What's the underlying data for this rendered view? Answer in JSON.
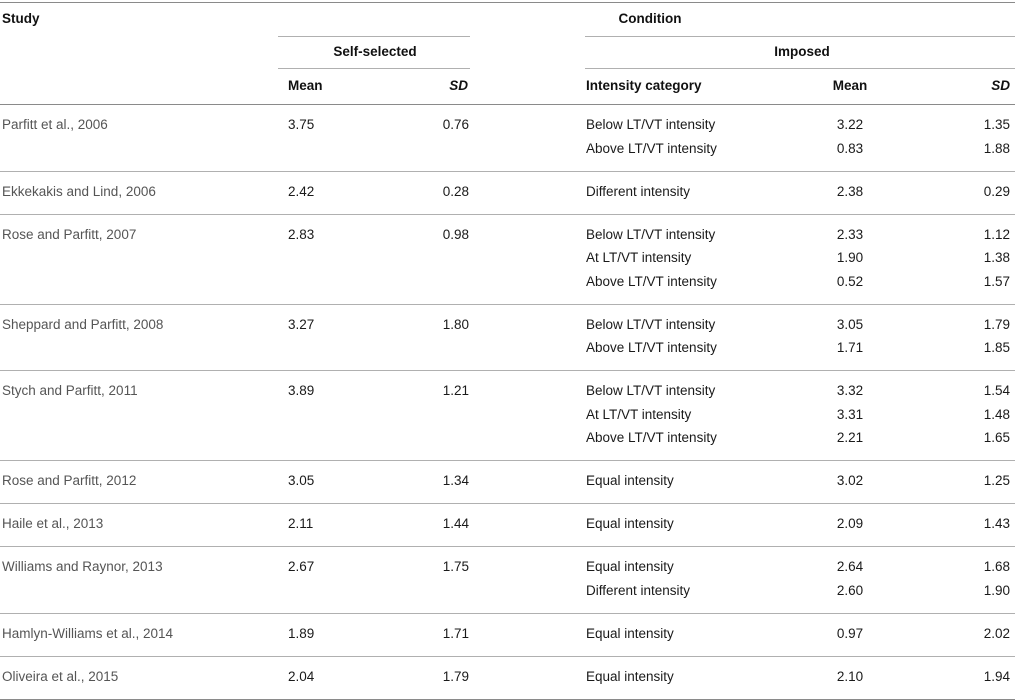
{
  "header": {
    "study": "Study",
    "condition": "Condition",
    "self_selected": "Self-selected",
    "imposed": "Imposed",
    "mean": "Mean",
    "sd": "SD",
    "intensity_category": "Intensity category"
  },
  "rows": [
    {
      "study": "Parfitt et al., 2006",
      "ss_mean": "3.75",
      "ss_sd": "0.76",
      "imposed": [
        {
          "category": "Below LT/VT intensity",
          "mean": "3.22",
          "sd": "1.35"
        },
        {
          "category": "Above LT/VT intensity",
          "mean": "0.83",
          "sd": "1.88"
        }
      ]
    },
    {
      "study": "Ekkekakis and Lind, 2006",
      "ss_mean": "2.42",
      "ss_sd": "0.28",
      "imposed": [
        {
          "category": "Different intensity",
          "mean": "2.38",
          "sd": "0.29"
        }
      ]
    },
    {
      "study": "Rose and Parfitt, 2007",
      "ss_mean": "2.83",
      "ss_sd": "0.98",
      "imposed": [
        {
          "category": "Below LT/VT intensity",
          "mean": "2.33",
          "sd": "1.12"
        },
        {
          "category": "At LT/VT intensity",
          "mean": "1.90",
          "sd": "1.38"
        },
        {
          "category": "Above LT/VT intensity",
          "mean": "0.52",
          "sd": "1.57"
        }
      ]
    },
    {
      "study": "Sheppard and Parfitt, 2008",
      "ss_mean": "3.27",
      "ss_sd": "1.80",
      "imposed": [
        {
          "category": "Below LT/VT intensity",
          "mean": "3.05",
          "sd": "1.79"
        },
        {
          "category": "Above LT/VT intensity",
          "mean": "1.71",
          "sd": "1.85"
        }
      ]
    },
    {
      "study": "Stych and Parfitt, 2011",
      "ss_mean": "3.89",
      "ss_sd": "1.21",
      "imposed": [
        {
          "category": "Below LT/VT intensity",
          "mean": "3.32",
          "sd": "1.54"
        },
        {
          "category": "At LT/VT intensity",
          "mean": "3.31",
          "sd": "1.48"
        },
        {
          "category": "Above LT/VT intensity",
          "mean": "2.21",
          "sd": "1.65"
        }
      ]
    },
    {
      "study": "Rose and Parfitt, 2012",
      "ss_mean": "3.05",
      "ss_sd": "1.34",
      "imposed": [
        {
          "category": "Equal intensity",
          "mean": "3.02",
          "sd": "1.25"
        }
      ]
    },
    {
      "study": "Haile et al., 2013",
      "ss_mean": "2.11",
      "ss_sd": "1.44",
      "imposed": [
        {
          "category": "Equal intensity",
          "mean": "2.09",
          "sd": "1.43"
        }
      ]
    },
    {
      "study": "Williams and Raynor, 2013",
      "ss_mean": "2.67",
      "ss_sd": "1.75",
      "imposed": [
        {
          "category": "Equal intensity",
          "mean": "2.64",
          "sd": "1.68"
        },
        {
          "category": "Different intensity",
          "mean": "2.60",
          "sd": "1.90"
        }
      ]
    },
    {
      "study": "Hamlyn-Williams et al., 2014",
      "ss_mean": "1.89",
      "ss_sd": "1.71",
      "imposed": [
        {
          "category": "Equal intensity",
          "mean": "0.97",
          "sd": "2.02"
        }
      ]
    },
    {
      "study": "Oliveira et al., 2015",
      "ss_mean": "2.04",
      "ss_sd": "1.79",
      "imposed": [
        {
          "category": "Equal intensity",
          "mean": "2.10",
          "sd": "1.94"
        }
      ]
    }
  ]
}
